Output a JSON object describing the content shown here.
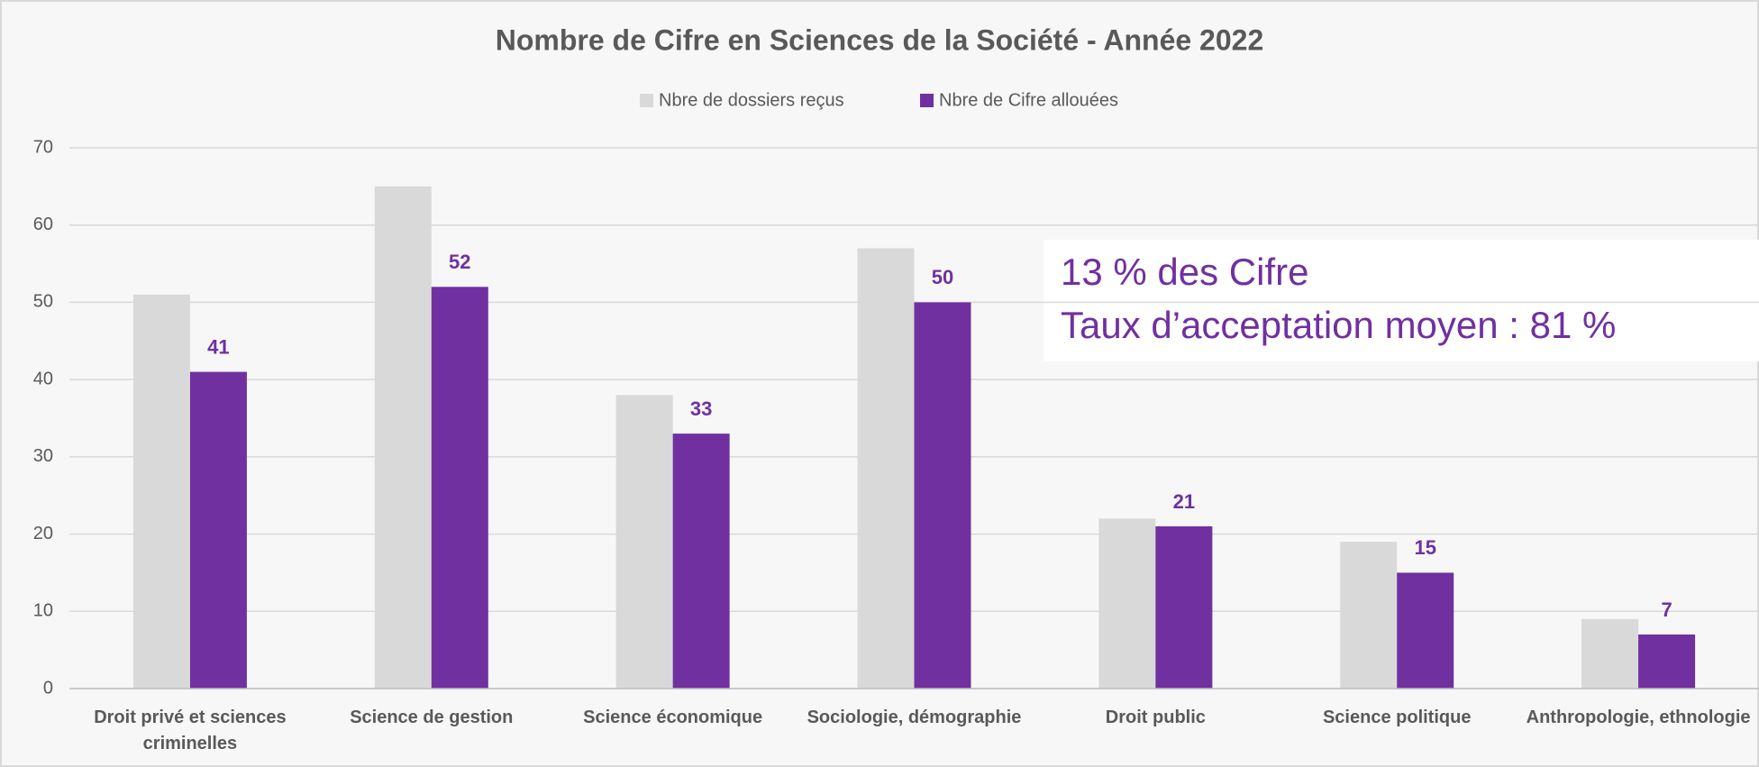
{
  "chart_data": {
    "type": "bar",
    "title": "Nombre de Cifre en Sciences de la Société - Année 2022",
    "categories": [
      "Droit privé et sciences criminelles",
      "Science de gestion",
      "Science économique",
      "Sociologie, démographie",
      "Droit public",
      "Science politique",
      "Anthropologie, ethnologie"
    ],
    "series": [
      {
        "name": "Nbre de dossiers reçus",
        "color": "#d9d9d9",
        "values": [
          51,
          65,
          38,
          57,
          22,
          19,
          9
        ]
      },
      {
        "name": "Nbre de Cifre allouées",
        "color": "#7030a0",
        "values": [
          41,
          52,
          33,
          50,
          21,
          15,
          7
        ],
        "data_labels": true
      }
    ],
    "ylim": [
      0,
      70
    ],
    "yticks": [
      0,
      10,
      20,
      30,
      40,
      50,
      60,
      70
    ],
    "grid": true,
    "legend": "top",
    "annotations": [
      "13 % des Cifre",
      "Taux d’acceptation moyen : 81 %"
    ]
  }
}
